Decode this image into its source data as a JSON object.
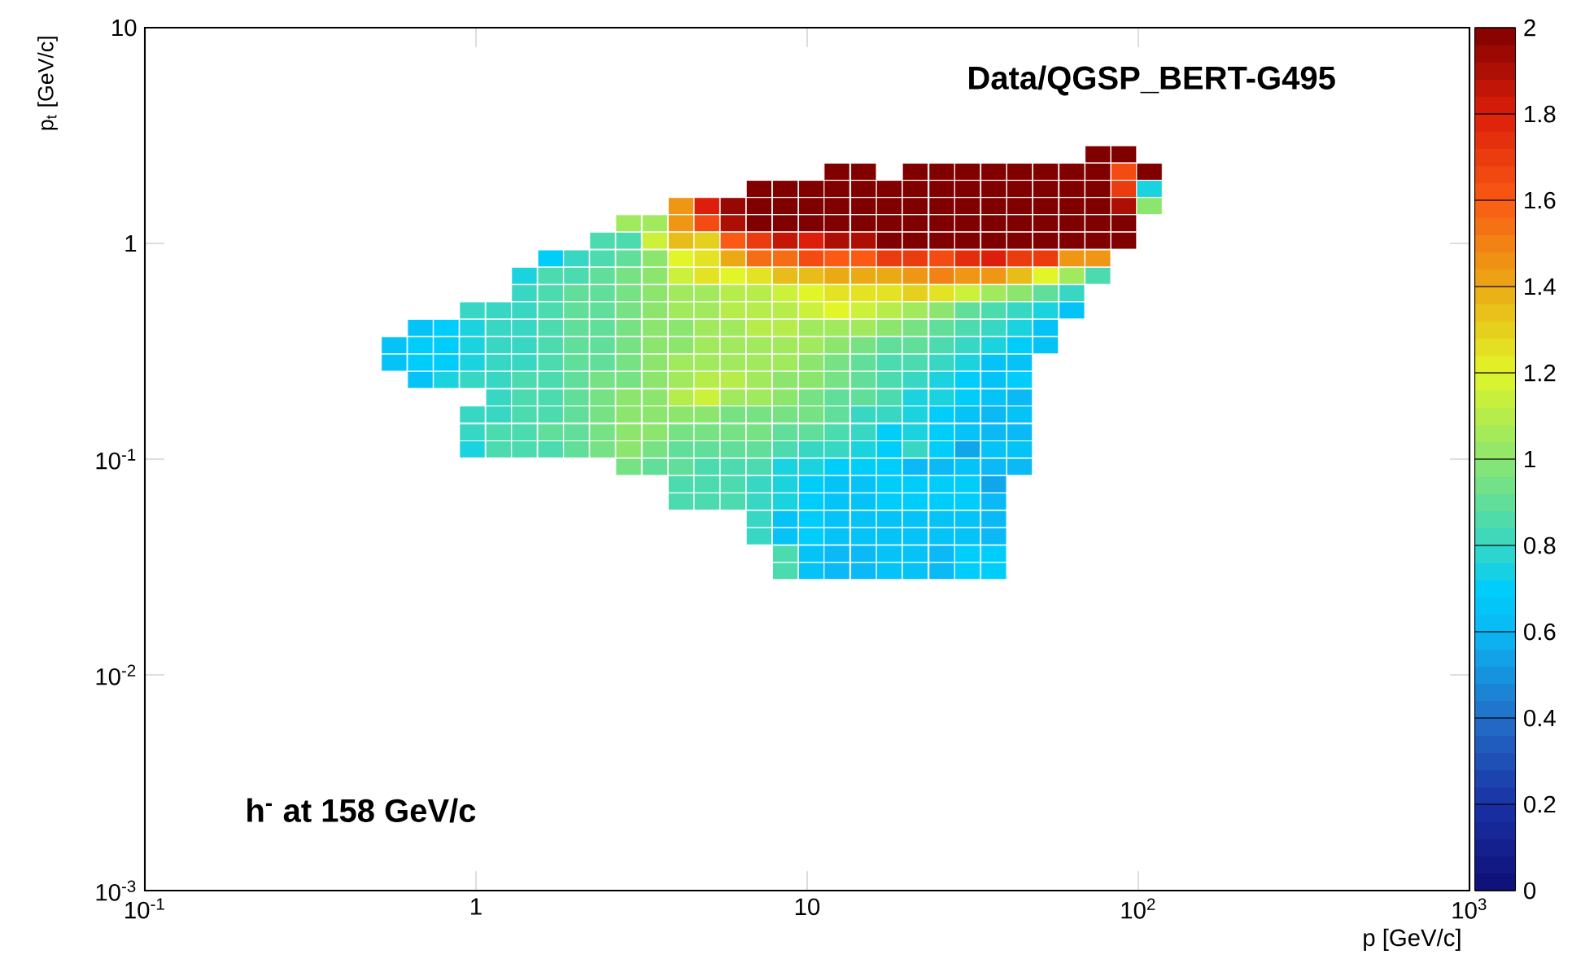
{
  "chart_data": {
    "type": "scatter",
    "title": "Data/QGSP_BERT-G495",
    "xlabel": "p [GeV/c]",
    "ylabel": "p$_{t}$ [GeV/c]",
    "annotations": [
      "h$^{-}$ at 158 GeV/c"
    ],
    "log": "xy",
    "marker": "square",
    "xlim": [
      0.1,
      1000
    ],
    "ylim": [
      0.001,
      10
    ],
    "xticks": [
      {
        "value": 0.1,
        "label": "10$^{-1}$"
      },
      1,
      10,
      {
        "value": 100,
        "label": "10$^{2}$"
      },
      {
        "value": 1000,
        "label": "10$^{3}$"
      }
    ],
    "yticks": [
      {
        "value": 0.001,
        "label": "10$^{-3}$"
      },
      {
        "value": 0.01,
        "label": "10$^{-2}$"
      },
      {
        "value": 0.1,
        "label": "10$^{-1}$"
      },
      1,
      10
    ],
    "clim": [
      0,
      2
    ],
    "cticks": [
      0,
      0.2,
      0.4,
      0.6,
      0.8,
      1,
      1.2,
      1.4,
      1.6,
      1.8,
      2
    ],
    "x": [
      75.5,
      90.4,
      12.3,
      14.8,
      21.2,
      25.5,
      30.5,
      36.6,
      43.8,
      52.5,
      63.0,
      75.5,
      90.4,
      108,
      7.16,
      8.59,
      10.3,
      12.3,
      14.8,
      17.7,
      21.2,
      25.5,
      30.5,
      36.6,
      43.8,
      52.5,
      63.0,
      75.5,
      90.4,
      108,
      4.16,
      4.98,
      5.97,
      7.16,
      8.59,
      10.3,
      12.3,
      14.8,
      17.7,
      21.2,
      25.5,
      30.5,
      36.6,
      43.8,
      52.5,
      63.0,
      75.5,
      90.4,
      108,
      2.89,
      3.47,
      4.16,
      4.98,
      5.97,
      7.16,
      8.59,
      10.3,
      12.3,
      14.8,
      17.7,
      21.2,
      25.5,
      30.5,
      36.6,
      43.8,
      52.5,
      63.0,
      75.5,
      90.4,
      2.41,
      2.89,
      3.47,
      4.16,
      4.98,
      5.97,
      7.16,
      8.59,
      10.3,
      12.3,
      14.8,
      17.7,
      21.2,
      25.5,
      30.5,
      36.6,
      43.8,
      52.5,
      63.0,
      75.5,
      90.4,
      1.68,
      2.01,
      2.41,
      2.89,
      3.47,
      4.16,
      4.98,
      5.97,
      7.16,
      8.59,
      10.3,
      12.3,
      14.8,
      17.7,
      21.2,
      25.5,
      30.5,
      36.6,
      43.8,
      52.5,
      63.0,
      75.5,
      1.4,
      1.68,
      2.01,
      2.41,
      2.89,
      3.47,
      4.16,
      4.98,
      5.97,
      7.16,
      8.59,
      10.3,
      12.3,
      14.8,
      17.7,
      21.2,
      25.5,
      30.5,
      36.6,
      43.8,
      52.5,
      63.0,
      75.5,
      1.4,
      1.68,
      2.01,
      2.41,
      2.89,
      3.47,
      4.16,
      4.98,
      5.97,
      7.16,
      8.59,
      10.3,
      12.3,
      14.8,
      17.7,
      21.2,
      25.5,
      30.5,
      36.6,
      43.8,
      52.5,
      63.0,
      0.975,
      1.17,
      1.4,
      1.68,
      2.01,
      2.41,
      2.89,
      3.47,
      4.16,
      4.98,
      5.97,
      7.16,
      8.59,
      10.3,
      12.3,
      14.8,
      17.7,
      21.2,
      25.5,
      30.5,
      36.6,
      43.8,
      52.5,
      63.0,
      0.679,
      0.813,
      0.975,
      1.17,
      1.4,
      1.68,
      2.01,
      2.41,
      2.89,
      3.47,
      4.16,
      4.98,
      5.97,
      7.16,
      8.59,
      10.3,
      12.3,
      14.8,
      17.7,
      21.2,
      25.5,
      30.5,
      36.6,
      43.8,
      52.5,
      0.566,
      0.679,
      0.813,
      0.975,
      1.17,
      1.4,
      1.68,
      2.01,
      2.41,
      2.89,
      3.47,
      4.16,
      4.98,
      5.97,
      7.16,
      8.59,
      10.3,
      12.3,
      14.8,
      17.7,
      21.2,
      25.5,
      30.5,
      36.6,
      43.8,
      52.5,
      0.566,
      0.679,
      0.813,
      0.975,
      1.17,
      1.4,
      1.68,
      2.01,
      2.41,
      2.89,
      3.47,
      4.16,
      4.98,
      5.97,
      7.16,
      8.59,
      10.3,
      12.3,
      14.8,
      17.7,
      21.2,
      25.5,
      30.5,
      36.6,
      43.8,
      0.679,
      0.813,
      0.975,
      1.17,
      1.4,
      1.68,
      2.01,
      2.41,
      2.89,
      3.47,
      4.16,
      4.98,
      5.97,
      7.16,
      8.59,
      10.3,
      12.3,
      14.8,
      17.7,
      21.2,
      25.5,
      30.5,
      36.6,
      43.8,
      1.17,
      1.4,
      1.68,
      2.01,
      2.41,
      2.89,
      3.47,
      4.16,
      4.98,
      5.97,
      7.16,
      8.59,
      10.3,
      12.3,
      14.8,
      17.7,
      21.2,
      25.5,
      30.5,
      36.6,
      43.8,
      0.975,
      1.17,
      1.4,
      1.68,
      2.01,
      2.41,
      2.89,
      3.47,
      4.16,
      4.98,
      5.97,
      7.16,
      8.59,
      10.3,
      12.3,
      14.8,
      17.7,
      21.2,
      25.5,
      30.5,
      36.6,
      43.8,
      0.975,
      1.17,
      1.4,
      1.68,
      2.01,
      2.41,
      2.89,
      3.47,
      4.16,
      4.98,
      5.97,
      7.16,
      8.59,
      10.3,
      12.3,
      14.8,
      17.7,
      21.2,
      25.5,
      30.5,
      36.6,
      43.8,
      0.975,
      1.17,
      1.4,
      1.68,
      2.01,
      2.41,
      2.89,
      3.47,
      4.16,
      4.98,
      5.97,
      7.16,
      8.59,
      10.3,
      12.3,
      14.8,
      17.7,
      21.2,
      25.5,
      30.5,
      36.6,
      43.8,
      2.89,
      3.47,
      4.16,
      4.98,
      5.97,
      7.16,
      8.59,
      10.3,
      12.3,
      14.8,
      17.7,
      21.2,
      25.5,
      30.5,
      36.6,
      43.8,
      4.16,
      4.98,
      5.97,
      7.16,
      8.59,
      10.3,
      12.3,
      14.8,
      17.7,
      21.2,
      25.5,
      30.5,
      36.6,
      4.16,
      4.98,
      5.97,
      7.16,
      8.59,
      10.3,
      12.3,
      14.8,
      17.7,
      21.2,
      25.5,
      30.5,
      36.6,
      7.16,
      8.59,
      10.3,
      12.3,
      14.8,
      17.7,
      21.2,
      25.5,
      30.5,
      36.6,
      7.16,
      8.59,
      10.3,
      12.3,
      14.8,
      17.7,
      21.2,
      25.5,
      30.5,
      36.6,
      8.59,
      10.3,
      12.3,
      14.8,
      17.7,
      21.2,
      25.5,
      30.5,
      36.6,
      8.59,
      10.3,
      12.3,
      14.8,
      17.7,
      21.2,
      25.5,
      30.5,
      36.6
    ],
    "values": [
      2.59,
      2.59,
      2.15,
      2.15,
      2.15,
      2.15,
      2.15,
      2.15,
      2.15,
      2.15,
      2.15,
      2.15,
      2.15,
      2.15,
      1.79,
      1.79,
      1.79,
      1.79,
      1.79,
      1.79,
      1.79,
      1.79,
      1.79,
      1.79,
      1.79,
      1.79,
      1.79,
      1.79,
      1.79,
      1.79,
      1.49,
      1.49,
      1.49,
      1.49,
      1.49,
      1.49,
      1.49,
      1.49,
      1.49,
      1.49,
      1.49,
      1.49,
      1.49,
      1.49,
      1.49,
      1.49,
      1.49,
      1.49,
      1.49,
      1.24,
      1.24,
      1.24,
      1.24,
      1.24,
      1.24,
      1.24,
      1.24,
      1.24,
      1.24,
      1.24,
      1.24,
      1.24,
      1.24,
      1.24,
      1.24,
      1.24,
      1.24,
      1.24,
      1.24,
      1.03,
      1.03,
      1.03,
      1.03,
      1.03,
      1.03,
      1.03,
      1.03,
      1.03,
      1.03,
      1.03,
      1.03,
      1.03,
      1.03,
      1.03,
      1.03,
      1.03,
      1.03,
      1.03,
      1.03,
      1.03,
      0.852,
      0.852,
      0.852,
      0.852,
      0.852,
      0.852,
      0.852,
      0.852,
      0.852,
      0.852,
      0.852,
      0.852,
      0.852,
      0.852,
      0.852,
      0.852,
      0.852,
      0.852,
      0.852,
      0.852,
      0.852,
      0.852,
      0.708,
      0.708,
      0.708,
      0.708,
      0.708,
      0.708,
      0.708,
      0.708,
      0.708,
      0.708,
      0.708,
      0.708,
      0.708,
      0.708,
      0.708,
      0.708,
      0.708,
      0.708,
      0.708,
      0.708,
      0.708,
      0.708,
      0.708,
      0.588,
      0.588,
      0.588,
      0.588,
      0.588,
      0.588,
      0.588,
      0.588,
      0.588,
      0.588,
      0.588,
      0.588,
      0.588,
      0.588,
      0.588,
      0.588,
      0.588,
      0.588,
      0.588,
      0.588,
      0.588,
      0.588,
      0.489,
      0.489,
      0.489,
      0.489,
      0.489,
      0.489,
      0.489,
      0.489,
      0.489,
      0.489,
      0.489,
      0.489,
      0.489,
      0.489,
      0.489,
      0.489,
      0.489,
      0.489,
      0.489,
      0.489,
      0.489,
      0.489,
      0.489,
      0.489,
      0.406,
      0.406,
      0.406,
      0.406,
      0.406,
      0.406,
      0.406,
      0.406,
      0.406,
      0.406,
      0.406,
      0.406,
      0.406,
      0.406,
      0.406,
      0.406,
      0.406,
      0.406,
      0.406,
      0.406,
      0.406,
      0.406,
      0.406,
      0.406,
      0.406,
      0.337,
      0.337,
      0.337,
      0.337,
      0.337,
      0.337,
      0.337,
      0.337,
      0.337,
      0.337,
      0.337,
      0.337,
      0.337,
      0.337,
      0.337,
      0.337,
      0.337,
      0.337,
      0.337,
      0.337,
      0.337,
      0.337,
      0.337,
      0.337,
      0.337,
      0.337,
      0.28,
      0.28,
      0.28,
      0.28,
      0.28,
      0.28,
      0.28,
      0.28,
      0.28,
      0.28,
      0.28,
      0.28,
      0.28,
      0.28,
      0.28,
      0.28,
      0.28,
      0.28,
      0.28,
      0.28,
      0.28,
      0.28,
      0.28,
      0.28,
      0.28,
      0.233,
      0.233,
      0.233,
      0.233,
      0.233,
      0.233,
      0.233,
      0.233,
      0.233,
      0.233,
      0.233,
      0.233,
      0.233,
      0.233,
      0.233,
      0.233,
      0.233,
      0.233,
      0.233,
      0.233,
      0.233,
      0.233,
      0.233,
      0.233,
      0.193,
      0.193,
      0.193,
      0.193,
      0.193,
      0.193,
      0.193,
      0.193,
      0.193,
      0.193,
      0.193,
      0.193,
      0.193,
      0.193,
      0.193,
      0.193,
      0.193,
      0.193,
      0.193,
      0.193,
      0.193,
      0.161,
      0.161,
      0.161,
      0.161,
      0.161,
      0.161,
      0.161,
      0.161,
      0.161,
      0.161,
      0.161,
      0.161,
      0.161,
      0.161,
      0.161,
      0.161,
      0.161,
      0.161,
      0.161,
      0.161,
      0.161,
      0.161,
      0.133,
      0.133,
      0.133,
      0.133,
      0.133,
      0.133,
      0.133,
      0.133,
      0.133,
      0.133,
      0.133,
      0.133,
      0.133,
      0.133,
      0.133,
      0.133,
      0.133,
      0.133,
      0.133,
      0.133,
      0.133,
      0.133,
      0.111,
      0.111,
      0.111,
      0.111,
      0.111,
      0.111,
      0.111,
      0.111,
      0.111,
      0.111,
      0.111,
      0.111,
      0.111,
      0.111,
      0.111,
      0.111,
      0.111,
      0.111,
      0.111,
      0.111,
      0.111,
      0.111,
      0.0921,
      0.0921,
      0.0921,
      0.0921,
      0.0921,
      0.0921,
      0.0921,
      0.0921,
      0.0921,
      0.0921,
      0.0921,
      0.0921,
      0.0921,
      0.0921,
      0.0921,
      0.0921,
      0.0765,
      0.0765,
      0.0765,
      0.0765,
      0.0765,
      0.0765,
      0.0765,
      0.0765,
      0.0765,
      0.0765,
      0.0765,
      0.0765,
      0.0765,
      0.0636,
      0.0636,
      0.0636,
      0.0636,
      0.0636,
      0.0636,
      0.0636,
      0.0636,
      0.0636,
      0.0636,
      0.0636,
      0.0636,
      0.0636,
      0.0528,
      0.0528,
      0.0528,
      0.0528,
      0.0528,
      0.0528,
      0.0528,
      0.0528,
      0.0528,
      0.0528,
      0.0439,
      0.0439,
      0.0439,
      0.0439,
      0.0439,
      0.0439,
      0.0439,
      0.0439,
      0.0439,
      0.0439,
      0.0364,
      0.0364,
      0.0364,
      0.0364,
      0.0364,
      0.0364,
      0.0364,
      0.0364,
      0.0364,
      0.0303,
      0.0303,
      0.0303,
      0.0303,
      0.0303,
      0.0303,
      0.0303,
      0.0303,
      0.0303
    ],
    "cvalues": [
      2,
      2,
      2,
      2,
      2,
      2,
      2,
      2,
      2,
      2,
      2,
      2,
      1.65,
      2,
      2,
      2,
      2,
      2,
      2,
      2,
      2,
      2,
      2,
      2,
      2,
      2,
      2,
      2,
      1.7,
      0.75,
      1.45,
      1.8,
      1.95,
      2,
      2,
      2,
      2,
      2,
      2,
      2,
      2,
      2,
      2,
      2,
      2,
      2,
      2,
      1.9,
      1.0,
      1.05,
      1.05,
      1.45,
      1.65,
      1.9,
      2,
      2,
      2,
      2,
      2,
      2,
      2,
      2,
      2,
      2,
      2,
      2,
      2,
      2,
      2,
      0.85,
      0.85,
      1.15,
      1.35,
      1.3,
      1.6,
      1.7,
      1.85,
      1.8,
      1.9,
      1.9,
      2,
      2,
      2,
      2,
      2,
      2,
      2,
      2,
      2,
      2,
      0.7,
      0.8,
      0.85,
      0.9,
      1.0,
      1.2,
      1.25,
      1.4,
      1.55,
      1.55,
      1.65,
      1.6,
      1.6,
      1.7,
      1.7,
      1.65,
      1.75,
      1.8,
      1.7,
      1.7,
      1.45,
      1.45,
      0.75,
      0.85,
      0.85,
      0.9,
      0.95,
      1.0,
      1.15,
      1.25,
      1.2,
      1.25,
      1.35,
      1.35,
      1.4,
      1.4,
      1.4,
      1.45,
      1.5,
      1.45,
      1.45,
      1.35,
      1.2,
      1.05,
      0.85,
      0.8,
      0.85,
      0.9,
      0.9,
      0.95,
      1.0,
      1.05,
      1.05,
      1.1,
      1.1,
      1.15,
      1.2,
      1.25,
      1.25,
      1.25,
      1.3,
      1.25,
      1.15,
      1.05,
      1.0,
      0.9,
      0.8,
      0.8,
      0.8,
      0.8,
      0.85,
      0.9,
      0.9,
      0.95,
      1.0,
      1.05,
      1.05,
      1.1,
      1.1,
      1.1,
      1.15,
      1.2,
      1.15,
      1.1,
      1.05,
      1.0,
      0.9,
      0.85,
      0.8,
      0.75,
      0.65,
      0.65,
      0.7,
      0.75,
      0.8,
      0.8,
      0.85,
      0.9,
      0.9,
      0.95,
      1.0,
      1.0,
      1.05,
      1.05,
      1.1,
      1.1,
      1.05,
      1.05,
      1.05,
      1.0,
      0.95,
      0.9,
      0.85,
      0.8,
      0.75,
      0.65,
      0.65,
      0.7,
      0.7,
      0.75,
      0.8,
      0.8,
      0.85,
      0.9,
      0.9,
      0.95,
      1.0,
      1.0,
      1.05,
      1.05,
      1.05,
      1.05,
      1.05,
      1.0,
      0.95,
      0.9,
      0.9,
      0.85,
      0.8,
      0.75,
      0.7,
      0.65,
      0.65,
      0.7,
      0.7,
      0.75,
      0.8,
      0.8,
      0.85,
      0.9,
      0.9,
      0.95,
      1.0,
      1.05,
      1.05,
      1.05,
      1.05,
      1.05,
      1.0,
      0.95,
      0.9,
      0.85,
      0.85,
      0.8,
      0.75,
      0.65,
      0.65,
      0.65,
      0.75,
      0.8,
      0.8,
      0.85,
      0.85,
      0.9,
      0.95,
      0.95,
      1.0,
      1.05,
      1.1,
      1.1,
      1.05,
      1.0,
      1.0,
      0.95,
      0.9,
      0.85,
      0.8,
      0.75,
      0.7,
      0.65,
      0.7,
      0.8,
      0.85,
      0.85,
      0.9,
      0.95,
      1.0,
      1.0,
      1.1,
      1.15,
      1.05,
      1.05,
      1.0,
      0.95,
      0.9,
      0.9,
      0.85,
      0.75,
      0.75,
      0.7,
      0.65,
      0.6,
      0.8,
      0.8,
      0.85,
      0.85,
      0.9,
      0.95,
      1.0,
      1.0,
      1.0,
      1.0,
      0.95,
      0.95,
      0.95,
      0.95,
      0.9,
      0.8,
      0.8,
      0.75,
      0.7,
      0.65,
      0.6,
      0.65,
      0.8,
      0.85,
      0.85,
      0.9,
      0.9,
      0.95,
      1.0,
      1.0,
      0.95,
      0.95,
      0.95,
      0.95,
      0.9,
      0.9,
      0.85,
      0.8,
      0.7,
      0.75,
      0.7,
      0.65,
      0.6,
      0.6,
      0.75,
      0.85,
      0.85,
      0.85,
      0.9,
      0.95,
      1.0,
      0.95,
      0.9,
      0.9,
      0.9,
      0.9,
      0.85,
      0.8,
      0.8,
      0.75,
      0.7,
      0.8,
      0.7,
      0.55,
      0.65,
      0.65,
      0.95,
      0.9,
      0.9,
      0.85,
      0.85,
      0.85,
      0.75,
      0.75,
      0.7,
      0.7,
      0.7,
      0.6,
      0.6,
      0.65,
      0.6,
      0.6,
      0.85,
      0.85,
      0.85,
      0.8,
      0.75,
      0.7,
      0.65,
      0.65,
      0.7,
      0.7,
      0.7,
      0.7,
      0.55,
      0.85,
      0.85,
      0.85,
      0.8,
      0.75,
      0.7,
      0.65,
      0.65,
      0.7,
      0.7,
      0.7,
      0.7,
      0.6,
      0.8,
      0.65,
      0.7,
      0.65,
      0.65,
      0.65,
      0.65,
      0.65,
      0.65,
      0.6,
      0.8,
      0.65,
      0.7,
      0.65,
      0.65,
      0.65,
      0.65,
      0.65,
      0.65,
      0.6,
      0.85,
      0.65,
      0.6,
      0.6,
      0.65,
      0.65,
      0.6,
      0.7,
      0.7,
      0.85,
      0.65,
      0.6,
      0.6,
      0.65,
      0.65,
      0.6,
      0.7,
      0.7
    ]
  }
}
